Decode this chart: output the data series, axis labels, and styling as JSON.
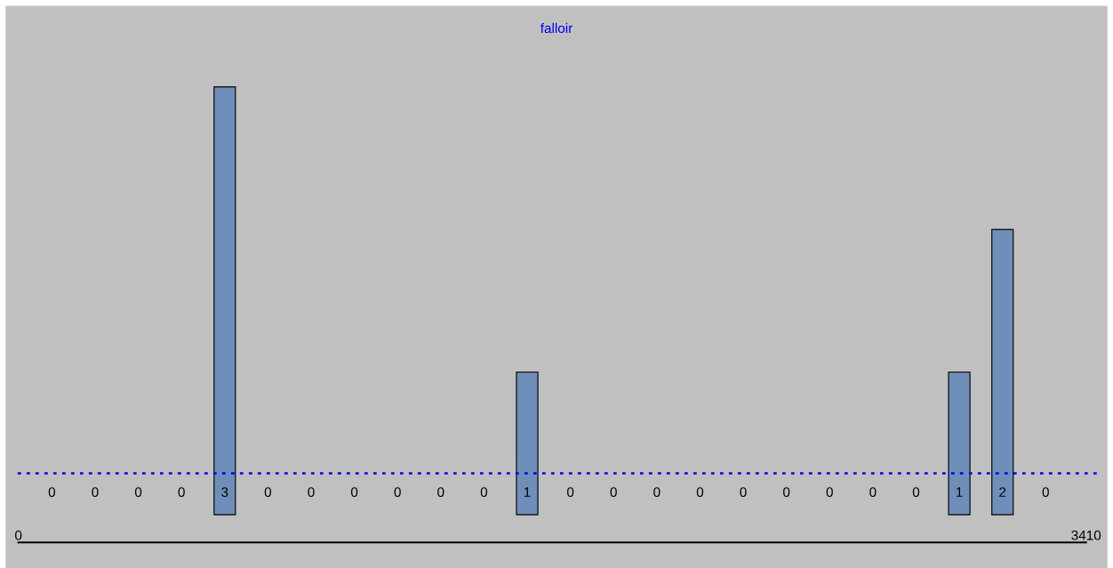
{
  "chart_data": {
    "type": "bar",
    "title": "falloir",
    "x": [
      107,
      245,
      383,
      521,
      659,
      797,
      935,
      1073,
      1211,
      1349,
      1487,
      1625,
      1763,
      1901,
      2039,
      2177,
      2315,
      2453,
      2591,
      2729,
      2867,
      3005,
      3143,
      3281
    ],
    "values": [
      0,
      0,
      0,
      0,
      3,
      0,
      0,
      0,
      0,
      0,
      0,
      1,
      0,
      0,
      0,
      0,
      0,
      0,
      0,
      0,
      0,
      1,
      2,
      0
    ],
    "color": "#6f8fba",
    "data_labels": true,
    "xlim": [
      0,
      3410
    ],
    "xticks": [
      0,
      3410
    ],
    "tick_labels": "x",
    "ref_lines": [
      {
        "axis": "y",
        "value": 0.29,
        "color": "#0000ff",
        "line_style": "dotted"
      }
    ],
    "grid": false,
    "legend": false
  }
}
